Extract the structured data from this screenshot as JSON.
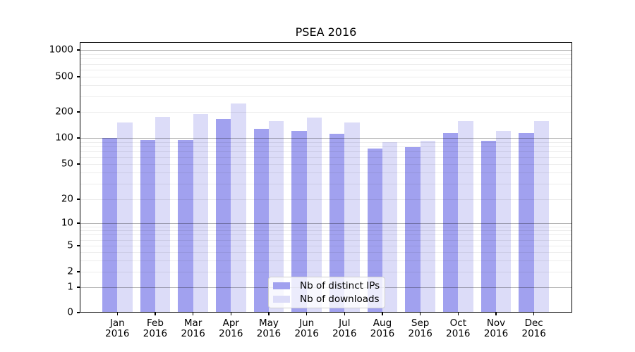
{
  "title": "PSEA 2016",
  "colors": {
    "distinct_ips_bar": "#a1a1ef",
    "downloads_bar": "#dcdcf8",
    "grid_major": "rgba(0,0,0,0.29)",
    "grid_minor": "rgba(0,0,0,0.075)",
    "axis": "#000000",
    "legend_border": "#cfcfcf"
  },
  "y_axis": {
    "ticks": [
      {
        "value": 0,
        "label": "0"
      },
      {
        "value": 1,
        "label": "1"
      },
      {
        "value": 2,
        "label": "2"
      },
      {
        "value": 5,
        "label": "5"
      },
      {
        "value": 10,
        "label": "10"
      },
      {
        "value": 20,
        "label": "20"
      },
      {
        "value": 50,
        "label": "50"
      },
      {
        "value": 100,
        "label": "100"
      },
      {
        "value": 200,
        "label": "200"
      },
      {
        "value": 500,
        "label": "500"
      },
      {
        "value": 1000,
        "label": "1000"
      }
    ],
    "major_values": [
      1,
      10,
      100,
      1000
    ]
  },
  "x_axis": {
    "months": [
      "Jan",
      "Feb",
      "Mar",
      "Apr",
      "May",
      "Jun",
      "Jul",
      "Aug",
      "Sep",
      "Oct",
      "Nov",
      "Dec"
    ],
    "year": "2016"
  },
  "legend": {
    "items": [
      {
        "label": "Nb of distinct IPs",
        "color": "#a1a1ef"
      },
      {
        "label": "Nb of downloads",
        "color": "#dcdcf8"
      }
    ]
  },
  "chart_data": {
    "type": "bar",
    "title": "PSEA 2016",
    "xlabel": "",
    "ylabel": "",
    "yscale": "symlog",
    "ylim": [
      0,
      1000
    ],
    "grid": true,
    "legend_position": "bottom-center-inside",
    "categories": [
      "Jan 2016",
      "Feb 2016",
      "Mar 2016",
      "Apr 2016",
      "May 2016",
      "Jun 2016",
      "Jul 2016",
      "Aug 2016",
      "Sep 2016",
      "Oct 2016",
      "Nov 2016",
      "Dec 2016"
    ],
    "series": [
      {
        "name": "Nb of distinct IPs",
        "color": "#a1a1ef",
        "values": [
          100,
          95,
          95,
          165,
          128,
          120,
          112,
          75,
          78,
          113,
          93,
          115
        ]
      },
      {
        "name": "Nb of downloads",
        "color": "#dcdcf8",
        "values": [
          152,
          174,
          190,
          248,
          157,
          172,
          150,
          89,
          93,
          156,
          120,
          156
        ]
      }
    ]
  }
}
